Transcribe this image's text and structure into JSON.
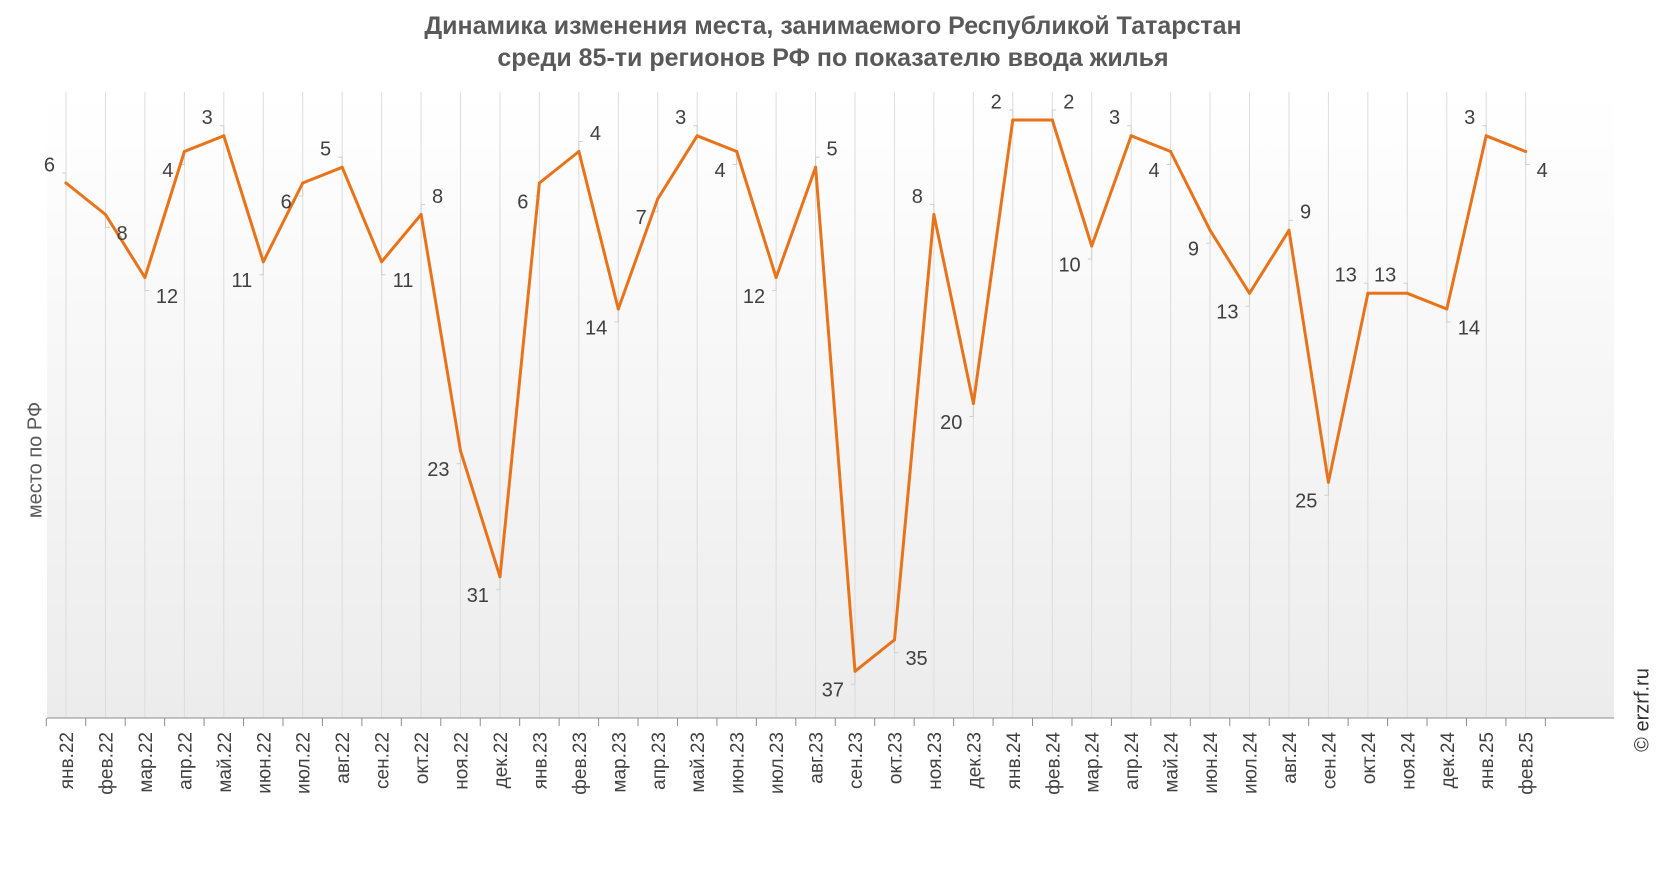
{
  "chart_data": {
    "type": "line",
    "title_lines": [
      "Динамика изменения места, занимаемого Республикой Татарстан",
      "среди 85-ти регионов РФ по показателю ввода жилья"
    ],
    "ylabel": "место по РФ",
    "xlabel": "",
    "y_inverted": true,
    "ylim": [
      1,
      40
    ],
    "grid": "vertical",
    "legend": "none",
    "categories": [
      "янв.22",
      "фев.22",
      "мар.22",
      "апр.22",
      "май.22",
      "июн.22",
      "июл.22",
      "авг.22",
      "сен.22",
      "окт.22",
      "ноя.22",
      "дек.22",
      "янв.23",
      "фев.23",
      "мар.23",
      "апр.23",
      "май.23",
      "июн.23",
      "июл.23",
      "авг.23",
      "сен.23",
      "окт.23",
      "ноя.23",
      "дек.23",
      "янв.24",
      "фев.24",
      "мар.24",
      "апр.24",
      "май.24",
      "июн.24",
      "июл.24",
      "авг.24",
      "сен.24",
      "окт.24",
      "ноя.24",
      "дек.24",
      "янв.25",
      "фев.25"
    ],
    "series": [
      {
        "values": [
          6,
          8,
          12,
          4,
          3,
          11,
          6,
          5,
          11,
          8,
          23,
          31,
          6,
          4,
          14,
          7,
          3,
          4,
          12,
          5,
          37,
          35,
          8,
          20,
          2,
          2,
          10,
          3,
          4,
          9,
          13,
          9,
          25,
          13,
          13,
          14,
          3,
          4
        ],
        "label_sides": [
          "L",
          "R",
          "R",
          "L",
          "L",
          "L",
          "L",
          "L",
          "R",
          "R",
          "L",
          "L",
          "L",
          "R",
          "L",
          "L",
          "L",
          "L",
          "L",
          "R",
          "L",
          "R",
          "L",
          "L",
          "L",
          "R",
          "L",
          "L",
          "L",
          "L",
          "L",
          "R",
          "L",
          "L",
          "L",
          "R",
          "L",
          "R"
        ],
        "color": "#e8731a"
      }
    ],
    "credit": "© erzrf.ru"
  }
}
